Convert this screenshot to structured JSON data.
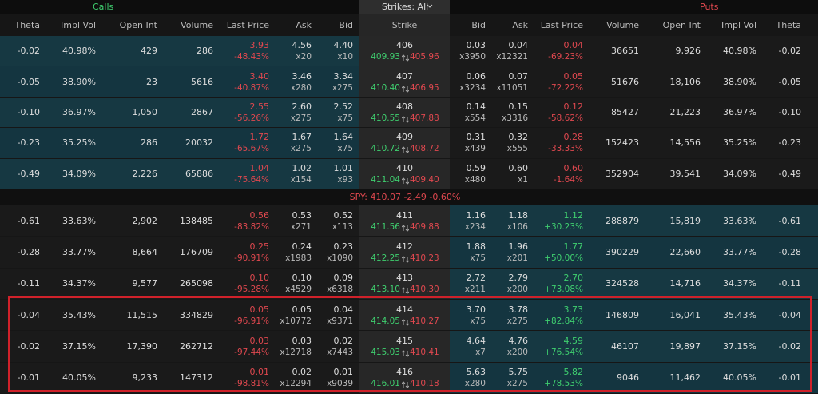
{
  "header": {
    "calls": "Calls",
    "strikes": "Strikes: All",
    "puts": "Puts"
  },
  "columns": [
    "Theta",
    "Impl Vol",
    "Open Int",
    "Volume",
    "Last Price",
    "Ask",
    "Bid",
    "Strike",
    "Bid",
    "Ask",
    "Last Price",
    "Volume",
    "Open Int",
    "Impl Vol",
    "Theta"
  ],
  "underlying": "SPY: 410.07 -2.49 -0.60%",
  "rows_above": [
    {
      "call": {
        "theta": "-0.02",
        "iv": "40.98%",
        "oi": "429",
        "volume": "286",
        "last": "3.93",
        "change": "-48.43%",
        "ask": "4.56",
        "ask_size": "x20",
        "bid": "4.40",
        "bid_size": "x10"
      },
      "strike": "406",
      "strike_up": "409.93",
      "strike_down": "405.96",
      "put": {
        "bid": "0.03",
        "bid_size": "x3950",
        "ask": "0.04",
        "ask_size": "x12321",
        "last": "0.04",
        "change": "-69.23%",
        "volume": "36651",
        "oi": "9,926",
        "iv": "40.98%",
        "theta": "-0.02"
      }
    },
    {
      "call": {
        "theta": "-0.05",
        "iv": "38.90%",
        "oi": "23",
        "volume": "5616",
        "last": "3.40",
        "change": "-40.87%",
        "ask": "3.46",
        "ask_size": "x280",
        "bid": "3.34",
        "bid_size": "x275"
      },
      "strike": "407",
      "strike_up": "410.40",
      "strike_down": "406.95",
      "put": {
        "bid": "0.06",
        "bid_size": "x3234",
        "ask": "0.07",
        "ask_size": "x11051",
        "last": "0.05",
        "change": "-72.22%",
        "volume": "51676",
        "oi": "18,106",
        "iv": "38.90%",
        "theta": "-0.05"
      }
    },
    {
      "call": {
        "theta": "-0.10",
        "iv": "36.97%",
        "oi": "1,050",
        "volume": "2867",
        "last": "2.55",
        "change": "-56.26%",
        "ask": "2.60",
        "ask_size": "x275",
        "bid": "2.52",
        "bid_size": "x75"
      },
      "strike": "408",
      "strike_up": "410.55",
      "strike_down": "407.88",
      "put": {
        "bid": "0.14",
        "bid_size": "x554",
        "ask": "0.15",
        "ask_size": "x3316",
        "last": "0.12",
        "change": "-58.62%",
        "volume": "85427",
        "oi": "21,223",
        "iv": "36.97%",
        "theta": "-0.10"
      }
    },
    {
      "call": {
        "theta": "-0.23",
        "iv": "35.25%",
        "oi": "286",
        "volume": "20032",
        "last": "1.72",
        "change": "-65.67%",
        "ask": "1.67",
        "ask_size": "x275",
        "bid": "1.64",
        "bid_size": "x75"
      },
      "strike": "409",
      "strike_up": "410.72",
      "strike_down": "408.72",
      "put": {
        "bid": "0.31",
        "bid_size": "x439",
        "ask": "0.32",
        "ask_size": "x555",
        "last": "0.28",
        "change": "-33.33%",
        "volume": "152423",
        "oi": "14,556",
        "iv": "35.25%",
        "theta": "-0.23"
      }
    },
    {
      "call": {
        "theta": "-0.49",
        "iv": "34.09%",
        "oi": "2,226",
        "volume": "65886",
        "last": "1.04",
        "change": "-75.64%",
        "ask": "1.02",
        "ask_size": "x154",
        "bid": "1.01",
        "bid_size": "x93"
      },
      "strike": "410",
      "strike_up": "411.04",
      "strike_down": "409.40",
      "put": {
        "bid": "0.59",
        "bid_size": "x480",
        "ask": "0.60",
        "ask_size": "x1",
        "last": "0.60",
        "change": "-1.64%",
        "volume": "352904",
        "oi": "39,541",
        "iv": "34.09%",
        "theta": "-0.49"
      }
    }
  ],
  "rows_below": [
    {
      "call": {
        "theta": "-0.61",
        "iv": "33.63%",
        "oi": "2,902",
        "volume": "138485",
        "last": "0.56",
        "change": "-83.82%",
        "ask": "0.53",
        "ask_size": "x271",
        "bid": "0.52",
        "bid_size": "x113"
      },
      "strike": "411",
      "strike_up": "411.56",
      "strike_down": "409.88",
      "put": {
        "bid": "1.16",
        "bid_size": "x234",
        "ask": "1.18",
        "ask_size": "x106",
        "last": "1.12",
        "change": "+30.23%",
        "volume": "288879",
        "oi": "15,819",
        "iv": "33.63%",
        "theta": "-0.61"
      }
    },
    {
      "call": {
        "theta": "-0.28",
        "iv": "33.77%",
        "oi": "8,664",
        "volume": "176709",
        "last": "0.25",
        "change": "-90.91%",
        "ask": "0.24",
        "ask_size": "x1983",
        "bid": "0.23",
        "bid_size": "x1090"
      },
      "strike": "412",
      "strike_up": "412.25",
      "strike_down": "410.23",
      "put": {
        "bid": "1.88",
        "bid_size": "x75",
        "ask": "1.96",
        "ask_size": "x201",
        "last": "1.77",
        "change": "+50.00%",
        "volume": "390229",
        "oi": "22,660",
        "iv": "33.77%",
        "theta": "-0.28"
      }
    },
    {
      "call": {
        "theta": "-0.11",
        "iv": "34.37%",
        "oi": "9,577",
        "volume": "265098",
        "last": "0.10",
        "change": "-95.28%",
        "ask": "0.10",
        "ask_size": "x4529",
        "bid": "0.09",
        "bid_size": "x6318"
      },
      "strike": "413",
      "strike_up": "413.10",
      "strike_down": "410.30",
      "put": {
        "bid": "2.72",
        "bid_size": "x211",
        "ask": "2.79",
        "ask_size": "x200",
        "last": "2.70",
        "change": "+73.08%",
        "volume": "324528",
        "oi": "14,716",
        "iv": "34.37%",
        "theta": "-0.11"
      }
    },
    {
      "call": {
        "theta": "-0.04",
        "iv": "35.43%",
        "oi": "11,515",
        "volume": "334829",
        "last": "0.05",
        "change": "-96.91%",
        "ask": "0.05",
        "ask_size": "x10772",
        "bid": "0.04",
        "bid_size": "x9371"
      },
      "strike": "414",
      "strike_up": "414.05",
      "strike_down": "410.27",
      "put": {
        "bid": "3.70",
        "bid_size": "x75",
        "ask": "3.78",
        "ask_size": "x275",
        "last": "3.73",
        "change": "+82.84%",
        "volume": "146809",
        "oi": "16,041",
        "iv": "35.43%",
        "theta": "-0.04"
      }
    },
    {
      "call": {
        "theta": "-0.02",
        "iv": "37.15%",
        "oi": "17,390",
        "volume": "262712",
        "last": "0.03",
        "change": "-97.44%",
        "ask": "0.03",
        "ask_size": "x12718",
        "bid": "0.02",
        "bid_size": "x7443"
      },
      "strike": "415",
      "strike_up": "415.03",
      "strike_down": "410.41",
      "put": {
        "bid": "4.64",
        "bid_size": "x7",
        "ask": "4.76",
        "ask_size": "x200",
        "last": "4.59",
        "change": "+76.54%",
        "volume": "46107",
        "oi": "19,897",
        "iv": "37.15%",
        "theta": "-0.02"
      }
    },
    {
      "call": {
        "theta": "-0.01",
        "iv": "40.05%",
        "oi": "9,233",
        "volume": "147312",
        "last": "0.01",
        "change": "-98.81%",
        "ask": "0.02",
        "ask_size": "x12294",
        "bid": "0.01",
        "bid_size": "x9039"
      },
      "strike": "416",
      "strike_up": "416.01",
      "strike_down": "410.18",
      "put": {
        "bid": "5.63",
        "bid_size": "x280",
        "ask": "5.75",
        "ask_size": "x275",
        "last": "5.82",
        "change": "+78.53%",
        "volume": "9046",
        "oi": "11,462",
        "iv": "40.05%",
        "theta": "-0.01"
      }
    }
  ]
}
